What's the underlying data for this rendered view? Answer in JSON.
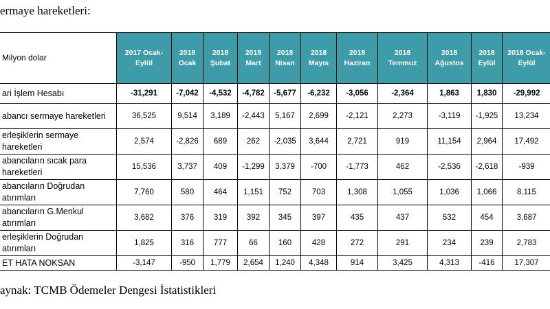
{
  "title": "ermaye hareketleri:",
  "table": {
    "corner": "Milyon dolar",
    "headers": [
      "2017 Ocak-Eylül",
      "2018 Ocak",
      "2018 Şubat",
      "2018 Mart",
      "2018 Nisan",
      "2018 Mayıs",
      "2018 Haziran",
      "2018 Temmuz",
      "2018 Ağustos",
      "2018 Eylül",
      "2018 Ocak-Eylül"
    ],
    "rows": [
      {
        "label": "ari İşlem Hesabı",
        "values": [
          "-31,291",
          "-7,042",
          "-4,532",
          "-4,782",
          "-5,677",
          "-6,232",
          "-3,056",
          "-2,364",
          "1,863",
          "1,830",
          "-29,992"
        ]
      },
      {
        "label": "abancı sermaye hareketleri",
        "values": [
          "36,525",
          "9,514",
          "3,189",
          "-2,443",
          "5,167",
          "2,699",
          "-2,121",
          "2,273",
          "-3,119",
          "-1,925",
          "13,234"
        ]
      },
      {
        "label": "erleşiklerin sermaye hareketleri",
        "values": [
          "2,574",
          "-2,826",
          "689",
          "262",
          "-2,035",
          "3,644",
          "2,721",
          "919",
          "11,154",
          "2,964",
          "17,492"
        ]
      },
      {
        "label": "abancıların sıcak para hareketleri",
        "values": [
          "15,536",
          "3,737",
          "409",
          "-1,299",
          "3,379",
          "-700",
          "-1,773",
          "462",
          "-2,536",
          "-2,618",
          "-939"
        ]
      },
      {
        "label": "abancıların Doğrudan atırımları",
        "values": [
          "7,760",
          "580",
          "464",
          "1,151",
          "752",
          "703",
          "1,308",
          "1,055",
          "1,036",
          "1,066",
          "8,115"
        ]
      },
      {
        "label": "abancıların G.Menkul atırımları",
        "values": [
          "3,682",
          "376",
          "319",
          "392",
          "345",
          "397",
          "435",
          "437",
          "532",
          "454",
          "3,687"
        ]
      },
      {
        "label": "erleşiklerin Doğrudan atırımları",
        "values": [
          "1,825",
          "316",
          "777",
          "66",
          "160",
          "428",
          "272",
          "291",
          "234",
          "239",
          "2,783"
        ]
      },
      {
        "label": "ET HATA NOKSAN",
        "values": [
          "-3,147",
          "-950",
          "1,779",
          "2,654",
          "1,240",
          "4,348",
          "914",
          "3,425",
          "4,313",
          "-416",
          "17,307"
        ]
      }
    ]
  },
  "source": "aynak: TCMB Ödemeler Dengesi İstatistikleri"
}
